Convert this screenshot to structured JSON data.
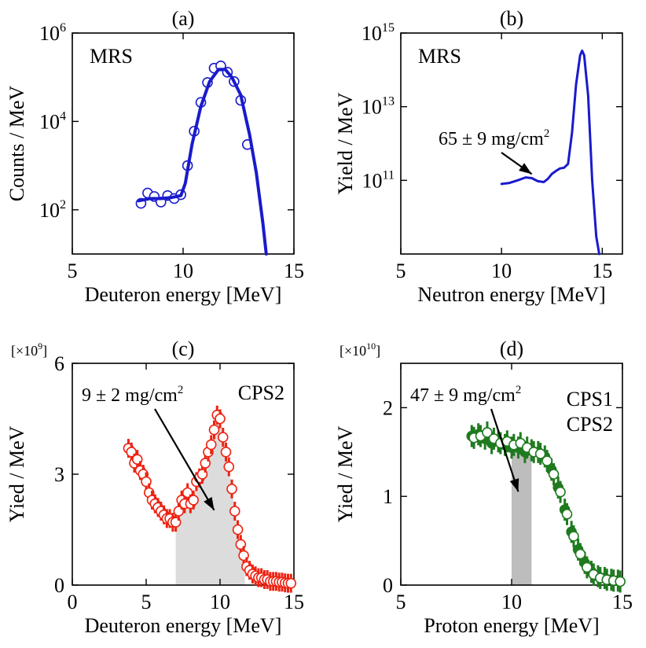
{
  "chart_data": [
    {
      "type": "scatter",
      "panel_label": "(a)",
      "xlabel": "Deuteron energy [MeV]",
      "ylabel": "Counts / MeV",
      "xlim": [
        5,
        15
      ],
      "ylim": [
        10,
        1000000
      ],
      "yscale": "log",
      "xticks": [
        5,
        10,
        15
      ],
      "yticks": [
        100,
        10000,
        1000000
      ],
      "ytick_labels": [
        {
          "base": "10",
          "exp": "2"
        },
        {
          "base": "10",
          "exp": "4"
        },
        {
          "base": "10",
          "exp": "6"
        }
      ],
      "legend": [
        {
          "text": "MRS",
          "color": "#1a1acc",
          "position": "top-left"
        }
      ],
      "series": [
        {
          "name": "MRS",
          "kind": "markers",
          "color": "#1a1acc",
          "x": [
            8.1,
            8.4,
            8.7,
            9.0,
            9.3,
            9.6,
            9.9,
            10.2,
            10.5,
            10.8,
            11.1,
            11.4,
            11.7,
            12.0,
            12.3,
            12.6,
            12.9
          ],
          "y": [
            140,
            240,
            200,
            150,
            210,
            180,
            220,
            1000,
            6000,
            27000,
            76000,
            160000,
            180000,
            130000,
            80000,
            30000,
            3000
          ]
        },
        {
          "name": "fit",
          "kind": "line",
          "color": "#1a1acc",
          "x": [
            8.0,
            8.5,
            9.0,
            9.5,
            9.9,
            10.1,
            10.4,
            10.8,
            11.2,
            11.6,
            11.9,
            12.2,
            12.6,
            13.0,
            13.3,
            13.6,
            13.75
          ],
          "y": [
            160,
            180,
            180,
            190,
            210,
            400,
            3000,
            22000,
            80000,
            150000,
            150000,
            100000,
            40000,
            5000,
            700,
            50,
            10
          ]
        }
      ]
    },
    {
      "type": "line",
      "panel_label": "(b)",
      "xlabel": "Neutron energy [MeV]",
      "ylabel": "Yield / MeV",
      "xlim": [
        5,
        16
      ],
      "ylim": [
        1000000000,
        1000000000000000
      ],
      "yscale": "log",
      "xticks": [
        5,
        10,
        15
      ],
      "yticks": [
        100000000000,
        10000000000000,
        1000000000000000
      ],
      "ytick_labels": [
        {
          "base": "10",
          "exp": "11"
        },
        {
          "base": "10",
          "exp": "13"
        },
        {
          "base": "10",
          "exp": "15"
        }
      ],
      "legend": [
        {
          "text": "MRS",
          "color": "#1a1acc",
          "position": "top-left"
        }
      ],
      "annotations": [
        {
          "text": "65 ± 9 mg/cm",
          "sup": "2",
          "arrow_to_x": 11.5,
          "arrow_to_y": 110000000000
        }
      ],
      "series": [
        {
          "name": "MRS",
          "color": "#1a1acc",
          "x": [
            10.0,
            10.4,
            10.8,
            11.2,
            11.5,
            11.8,
            12.1,
            12.3,
            12.5,
            12.7,
            12.9,
            13.1,
            13.3,
            13.5,
            13.7,
            13.9,
            14.0,
            14.1,
            14.3,
            14.5,
            14.7,
            14.85
          ],
          "y": [
            80000000000,
            85000000000,
            100000000000,
            120000000000,
            115000000000,
            95000000000,
            90000000000,
            110000000000,
            150000000000,
            180000000000,
            210000000000,
            220000000000,
            280000000000,
            2000000000000,
            40000000000000,
            250000000000000,
            330000000000000,
            250000000000000,
            20000000000000,
            100000000000,
            3000000000,
            1000000000
          ]
        }
      ]
    },
    {
      "type": "scatter",
      "panel_label": "(c)",
      "multiplier": {
        "text": "[×10",
        "exp": "9",
        "close": "]"
      },
      "xlabel": "Deuteron energy [MeV]",
      "ylabel": "Yied / MeV",
      "xlim": [
        0,
        15
      ],
      "ylim": [
        0,
        6
      ],
      "xticks": [
        0,
        5,
        10,
        15
      ],
      "yticks": [
        0,
        3,
        6
      ],
      "legend": [
        {
          "text": "CPS2",
          "color": "#ee2211",
          "position": "top-right"
        }
      ],
      "annotations": [
        {
          "text": "9 ± 2 mg/cm",
          "sup": "2",
          "arrow_to_x": 9.6,
          "arrow_to_y": 1.9
        }
      ],
      "shaded_region": {
        "x_start": 7.0,
        "x_end": 11.7,
        "color": "#dcdcdc"
      },
      "series": [
        {
          "name": "CPS2",
          "color": "#ee2211",
          "x": [
            3.8,
            4.0,
            4.2,
            4.4,
            4.6,
            4.8,
            5.0,
            5.2,
            5.4,
            5.6,
            5.8,
            6.0,
            6.2,
            6.4,
            6.6,
            6.8,
            7.0,
            7.2,
            7.4,
            7.6,
            7.8,
            8.0,
            8.2,
            8.4,
            8.6,
            8.8,
            9.0,
            9.2,
            9.4,
            9.6,
            9.8,
            10.0,
            10.2,
            10.4,
            10.6,
            10.8,
            11.0,
            11.2,
            11.4,
            11.6,
            11.8,
            12.0,
            12.2,
            12.4,
            12.6,
            12.8,
            13.0,
            13.2,
            13.4,
            13.6,
            13.8,
            14.0,
            14.2,
            14.4,
            14.6,
            14.8
          ],
          "y": [
            3.7,
            3.6,
            3.3,
            3.4,
            3.1,
            3.0,
            2.8,
            2.5,
            2.3,
            2.2,
            2.1,
            2.0,
            1.9,
            1.8,
            1.8,
            1.7,
            1.7,
            2.0,
            2.3,
            2.2,
            2.5,
            2.2,
            2.3,
            2.8,
            2.9,
            3.0,
            3.3,
            3.6,
            3.8,
            4.2,
            4.6,
            4.5,
            4.0,
            3.6,
            3.2,
            2.6,
            2.0,
            1.5,
            1.1,
            0.8,
            0.5,
            0.4,
            0.3,
            0.25,
            0.2,
            0.2,
            0.15,
            0.15,
            0.1,
            0.1,
            0.1,
            0.08,
            0.08,
            0.06,
            0.05,
            0.05
          ]
        }
      ]
    },
    {
      "type": "scatter",
      "panel_label": "(d)",
      "multiplier": {
        "text": "[×10",
        "exp": "10",
        "close": "]"
      },
      "xlabel": "Proton energy [MeV]",
      "ylabel": "Yied / MeV",
      "xlim": [
        5,
        15
      ],
      "ylim": [
        0,
        2.5
      ],
      "xticks": [
        5,
        10,
        15
      ],
      "yticks": [
        0,
        1,
        2
      ],
      "legend": [
        {
          "text": "CPS1",
          "color": "#1f7a1f",
          "position": "top-right"
        },
        {
          "text": "CPS2",
          "color": "#1f7a1f",
          "position": "top-right"
        }
      ],
      "annotations": [
        {
          "text": "47 ± 9 mg/cm",
          "sup": "2",
          "arrow_to_x": 10.3,
          "arrow_to_y": 1.0
        }
      ],
      "shaded_region": {
        "x_start": 10.0,
        "x_end": 10.9,
        "color": "#bdbdbd"
      },
      "series": [
        {
          "name": "CPS1",
          "color": "#1f7a1f",
          "filled": true,
          "x": [
            8.2,
            8.5,
            8.8,
            9.1,
            9.4,
            9.7,
            10.0,
            10.3,
            10.6,
            10.9,
            11.2,
            11.5,
            11.8,
            12.1,
            12.4,
            12.7,
            13.0,
            13.3,
            13.6,
            13.9,
            14.2,
            14.5,
            14.8
          ],
          "y": [
            1.68,
            1.7,
            1.65,
            1.6,
            1.62,
            1.58,
            1.55,
            1.55,
            1.5,
            1.52,
            1.5,
            1.45,
            1.3,
            1.1,
            0.85,
            0.6,
            0.4,
            0.25,
            0.15,
            0.1,
            0.08,
            0.06,
            0.05
          ]
        },
        {
          "name": "CPS2",
          "color": "#1f7a1f",
          "filled": false,
          "x": [
            8.3,
            8.6,
            8.9,
            9.2,
            9.5,
            9.8,
            10.1,
            10.4,
            10.7,
            11.0,
            11.3,
            11.6,
            11.9,
            12.2,
            12.5,
            12.8,
            13.1,
            13.4,
            13.7,
            14.0,
            14.3,
            14.6,
            14.9
          ],
          "y": [
            1.66,
            1.68,
            1.72,
            1.65,
            1.6,
            1.62,
            1.58,
            1.6,
            1.55,
            1.5,
            1.48,
            1.4,
            1.25,
            1.05,
            0.8,
            0.55,
            0.35,
            0.2,
            0.12,
            0.08,
            0.06,
            0.05,
            0.04
          ]
        }
      ]
    }
  ]
}
